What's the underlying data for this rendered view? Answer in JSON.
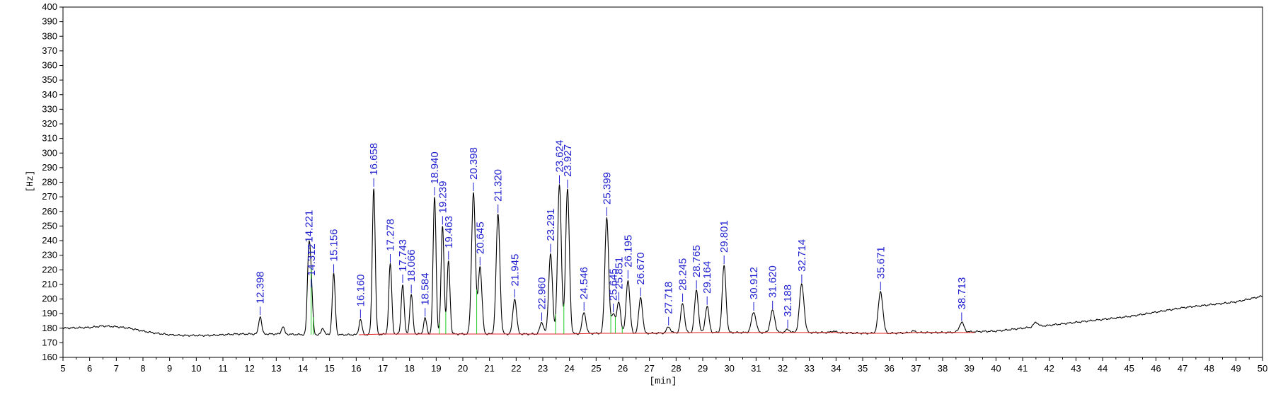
{
  "chart_data": {
    "type": "line",
    "title": "",
    "xlabel": "[min]",
    "ylabel": "[Hz]",
    "xlim": [
      5,
      50
    ],
    "ylim": [
      160,
      400
    ],
    "grid": false,
    "xticks": [
      5,
      6,
      7,
      8,
      9,
      10,
      11,
      12,
      13,
      14,
      15,
      16,
      17,
      18,
      19,
      20,
      21,
      22,
      23,
      24,
      25,
      26,
      27,
      28,
      29,
      30,
      31,
      32,
      33,
      34,
      35,
      36,
      37,
      38,
      39,
      40,
      41,
      42,
      43,
      44,
      45,
      46,
      47,
      48,
      49,
      50
    ],
    "yticks": [
      160,
      170,
      180,
      190,
      200,
      210,
      220,
      230,
      240,
      250,
      260,
      270,
      280,
      290,
      300,
      310,
      320,
      330,
      340,
      350,
      360,
      370,
      380,
      390,
      400
    ],
    "series": [
      {
        "role": "signal",
        "color": "#000000",
        "x": [
          5,
          6,
          6.5,
          7,
          7.5,
          8,
          8.5,
          9,
          9.5,
          10,
          10.5,
          11,
          11.5,
          12,
          12.5,
          13,
          13.5,
          14,
          15,
          16,
          17,
          18,
          19,
          20,
          21,
          22,
          23,
          24,
          25,
          26,
          27,
          28,
          29,
          30,
          31,
          32,
          33,
          34,
          35,
          36,
          37,
          38,
          39,
          40,
          41,
          42,
          43,
          44,
          45,
          46,
          47,
          48,
          49,
          50
        ],
        "y": [
          180,
          180.5,
          181.5,
          181,
          180,
          178,
          176.5,
          175.5,
          175,
          175,
          175,
          175.5,
          176,
          176,
          176,
          176,
          175.8,
          175.6,
          175.5,
          175.5,
          175.8,
          176,
          176,
          176,
          176,
          176,
          176,
          176,
          176.5,
          176.5,
          176.5,
          176.8,
          177,
          177,
          177,
          177,
          177,
          177,
          176.5,
          176.5,
          177,
          177,
          177.5,
          178,
          180,
          182,
          184,
          186,
          188,
          191,
          194,
          196,
          198,
          202
        ]
      },
      {
        "role": "baseline",
        "color": "#e02020",
        "x": [
          16.1,
          17,
          18,
          19,
          20,
          21,
          22,
          23,
          24,
          25,
          26,
          27,
          28,
          29,
          30,
          31,
          32,
          33,
          34,
          35,
          36,
          37,
          38,
          39.2
        ],
        "y": [
          175.5,
          176,
          176,
          176,
          176,
          176,
          176,
          176,
          176,
          176.5,
          176.5,
          176.5,
          176.8,
          177,
          177,
          177,
          177,
          177,
          177,
          176.5,
          176.5,
          177,
          177,
          177
        ]
      }
    ],
    "peaks": [
      {
        "x": 12.398,
        "y": 188,
        "label": "12.398"
      },
      {
        "x": 13.25,
        "y": 181
      },
      {
        "x": 14.221,
        "y": 230,
        "label": "14.221"
      },
      {
        "x": 14.312,
        "y": 207,
        "label": "14.312"
      },
      {
        "x": 14.75,
        "y": 180
      },
      {
        "x": 15.156,
        "y": 217,
        "label": "15.156"
      },
      {
        "x": 16.16,
        "y": 186,
        "label": "16.160"
      },
      {
        "x": 16.658,
        "y": 276,
        "label": "16.658"
      },
      {
        "x": 17.278,
        "y": 224,
        "label": "17.278"
      },
      {
        "x": 17.743,
        "y": 210,
        "label": "17.743"
      },
      {
        "x": 18.066,
        "y": 203,
        "label": "18.066"
      },
      {
        "x": 18.584,
        "y": 187,
        "label": "18.584"
      },
      {
        "x": 18.94,
        "y": 270,
        "label": "18.940"
      },
      {
        "x": 19.239,
        "y": 250,
        "label": "19.239"
      },
      {
        "x": 19.463,
        "y": 226,
        "label": "19.463"
      },
      {
        "x": 20.398,
        "y": 273,
        "label": "20.398"
      },
      {
        "x": 20.645,
        "y": 222,
        "label": "20.645"
      },
      {
        "x": 21.32,
        "y": 258,
        "label": "21.320"
      },
      {
        "x": 21.945,
        "y": 200,
        "label": "21.945"
      },
      {
        "x": 22.96,
        "y": 184,
        "label": "22.960"
      },
      {
        "x": 23.291,
        "y": 231,
        "label": "23.291"
      },
      {
        "x": 23.624,
        "y": 278,
        "label": "23.624"
      },
      {
        "x": 23.927,
        "y": 275,
        "label": "23.927"
      },
      {
        "x": 24.546,
        "y": 191,
        "label": "24.546"
      },
      {
        "x": 25.399,
        "y": 256,
        "label": "25.399"
      },
      {
        "x": 25.645,
        "y": 190,
        "label": "25.645"
      },
      {
        "x": 25.851,
        "y": 198,
        "label": "25.851"
      },
      {
        "x": 26.195,
        "y": 213,
        "label": "26.195"
      },
      {
        "x": 26.67,
        "y": 201,
        "label": "26.670"
      },
      {
        "x": 27.718,
        "y": 181,
        "label": "27.718"
      },
      {
        "x": 28.245,
        "y": 197,
        "label": "28.245"
      },
      {
        "x": 28.765,
        "y": 206,
        "label": "28.765"
      },
      {
        "x": 29.164,
        "y": 195,
        "label": "29.164"
      },
      {
        "x": 29.801,
        "y": 223,
        "label": "29.801"
      },
      {
        "x": 30.912,
        "y": 191,
        "label": "30.912"
      },
      {
        "x": 31.62,
        "y": 192,
        "label": "31.620"
      },
      {
        "x": 32.188,
        "y": 179,
        "label": "32.188"
      },
      {
        "x": 32.714,
        "y": 210,
        "label": "32.714"
      },
      {
        "x": 33.9,
        "y": 178
      },
      {
        "x": 35.671,
        "y": 205,
        "label": "35.671"
      },
      {
        "x": 36.9,
        "y": 178
      },
      {
        "x": 38.713,
        "y": 184,
        "label": "38.713"
      },
      {
        "x": 41.5,
        "y": 184
      }
    ],
    "integration_markers": [
      14.31,
      14.39,
      19.12,
      19.36,
      20.52,
      23.48,
      23.79,
      25.55,
      25.72,
      25.98
    ]
  }
}
